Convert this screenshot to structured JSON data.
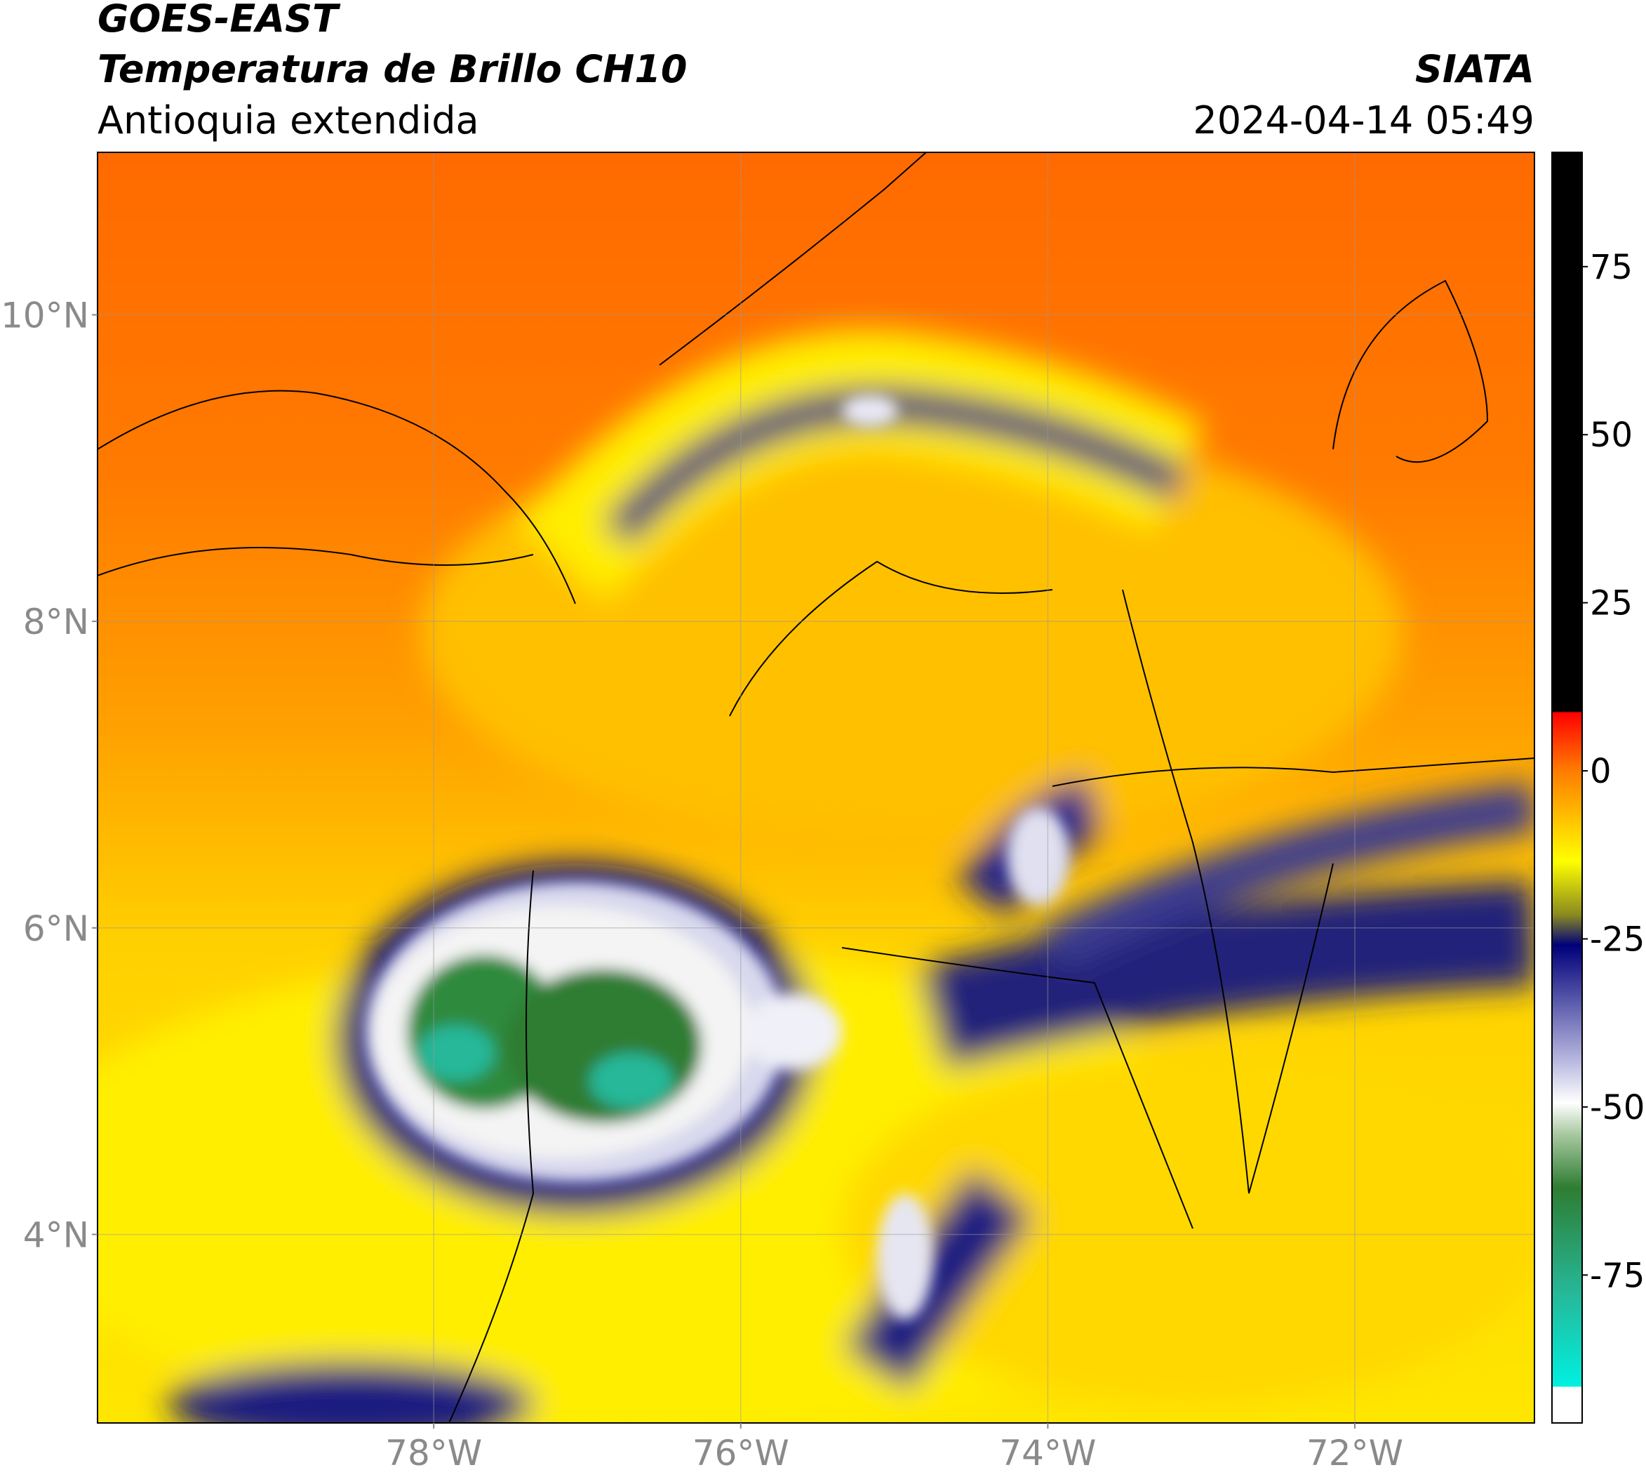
{
  "header": {
    "title": "GOES-EAST",
    "subtitle": "Temperatura de Brillo CH10",
    "region": "Antioquia extendida",
    "source": "SIATA",
    "datetime": "2024-04-14 05:49"
  },
  "map": {
    "xlim": [
      -80.19,
      -70.83
    ],
    "ylim": [
      2.77,
      11.06
    ],
    "xticks": [
      {
        "value": -78,
        "label": "78°W"
      },
      {
        "value": -76,
        "label": "76°W"
      },
      {
        "value": -74,
        "label": "74°W"
      },
      {
        "value": -72,
        "label": "72°W"
      }
    ],
    "yticks": [
      {
        "value": 10,
        "label": "10°N"
      },
      {
        "value": 8,
        "label": "8°N"
      },
      {
        "value": 6,
        "label": "6°N"
      },
      {
        "value": 4,
        "label": "4°N"
      }
    ]
  },
  "colorbar": {
    "lim": [
      -97,
      92
    ],
    "ticks": [
      75,
      50,
      25,
      0,
      -25,
      -50,
      -75
    ]
  }
}
